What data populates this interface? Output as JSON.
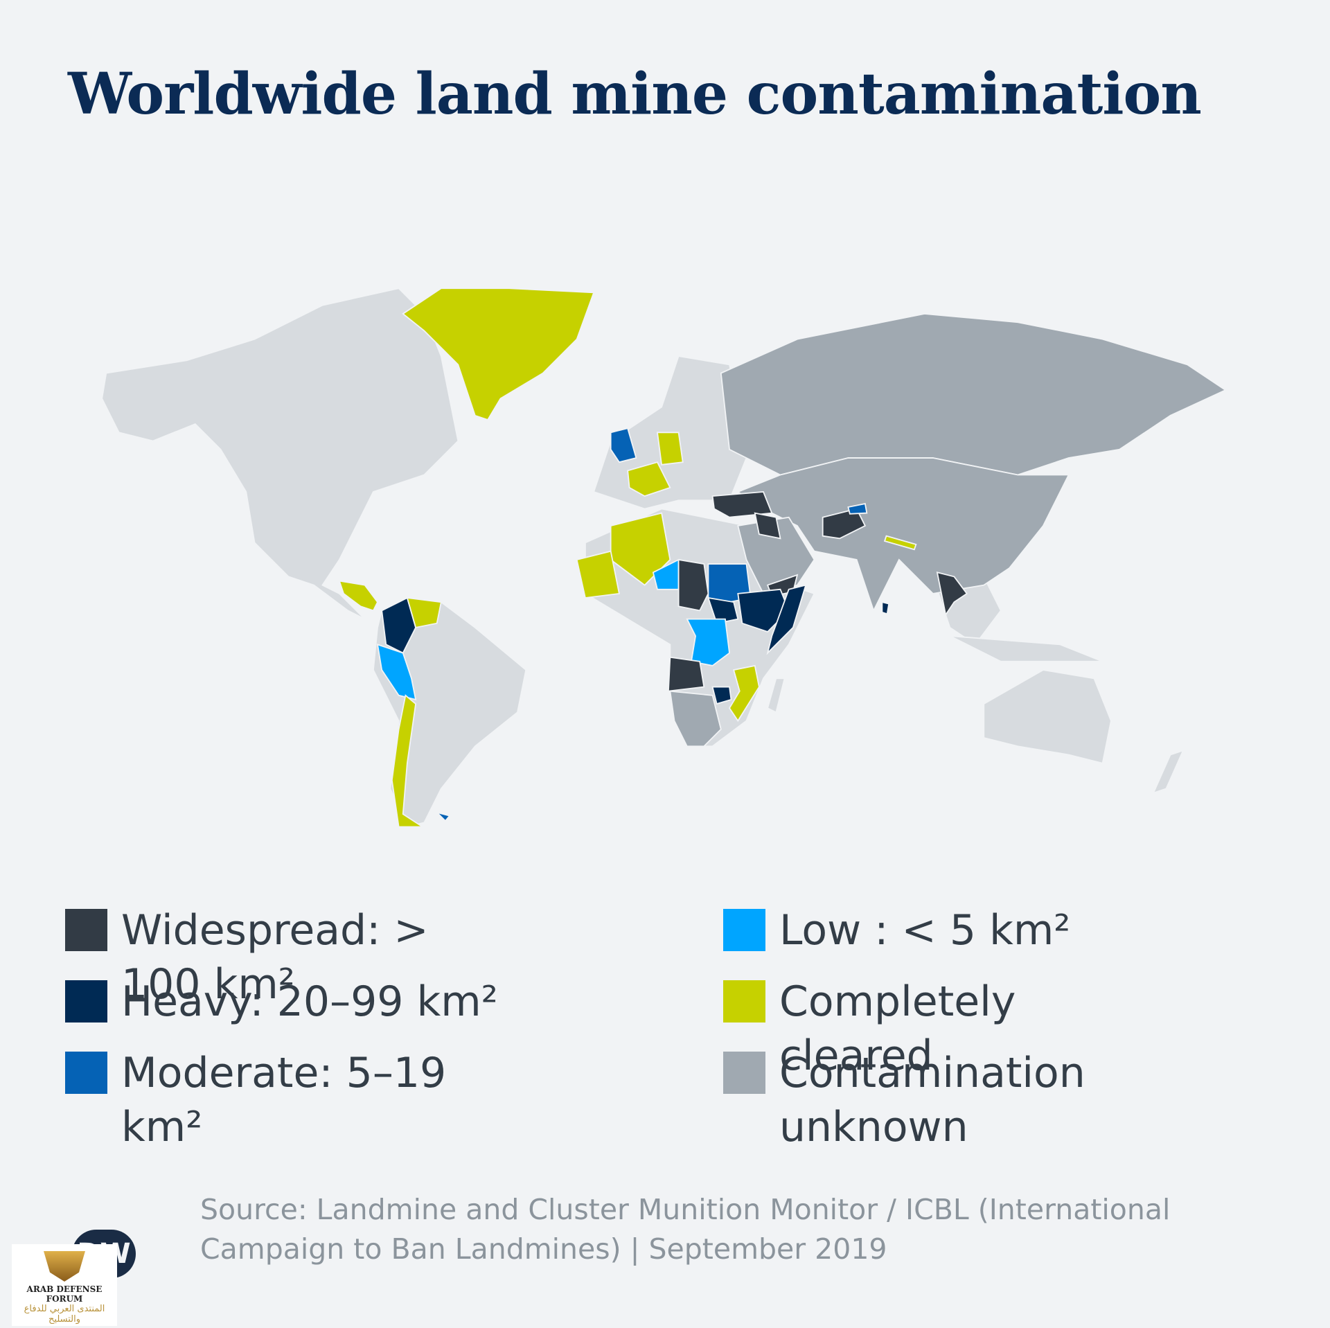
{
  "title": "Worldwide land mine contamination",
  "legend": {
    "items": [
      {
        "label": "Widespread: > 100 km²",
        "color": "#323b45"
      },
      {
        "label": "Heavy: 20–99 km²",
        "color": "#002a54"
      },
      {
        "label": "Moderate: 5–19 km²",
        "color": "#0562b5"
      },
      {
        "label": "Low : < 5 km²",
        "color": "#00a5ff"
      },
      {
        "label": "Completely cleared",
        "color": "#c6d100"
      },
      {
        "label": "Contamination unknown",
        "color": "#a0a9b1"
      }
    ]
  },
  "source": "Source: Landmine and Cluster Munition Monitor / ICBL (International Campaign to Ban Landmines) | September 2019",
  "logo": "DW",
  "watermark": {
    "name": "ARAB DEFENSE FORUM",
    "arabic": "المنتدى العربي للدفاع والتسليح"
  }
}
